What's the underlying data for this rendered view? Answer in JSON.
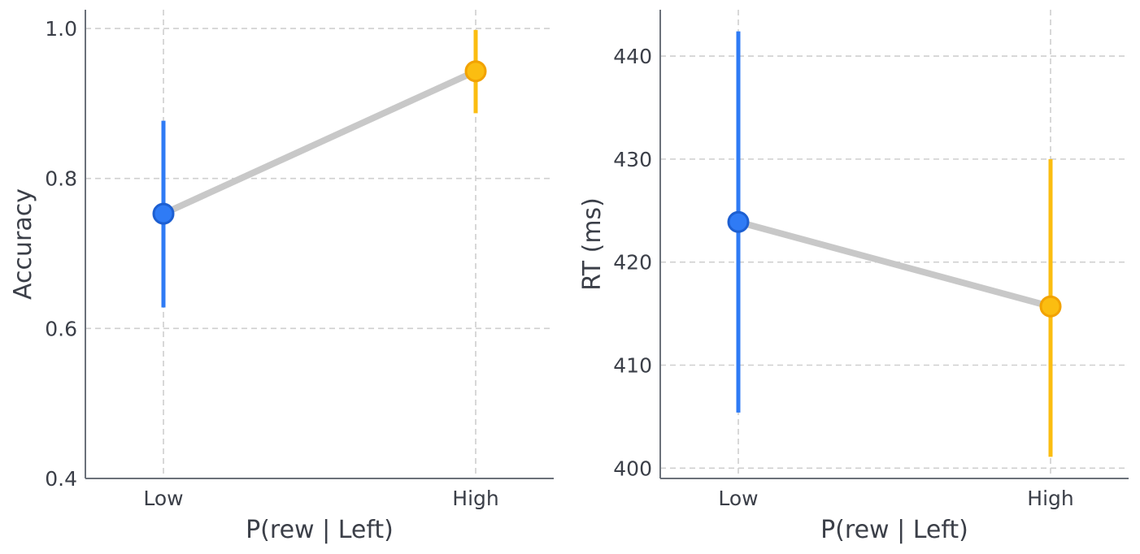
{
  "chart_data": [
    {
      "type": "line",
      "xlabel": "P(rew | Left)",
      "ylabel": "Accuracy",
      "categories": [
        "Low",
        "High"
      ],
      "ylim": [
        0.4,
        1.025
      ],
      "yticks": [
        0.4,
        0.6,
        0.8,
        1.0
      ],
      "ytick_labels": [
        "0.4",
        "0.6",
        "0.8",
        "1.0"
      ],
      "grid": true,
      "connector_color": "#c8c8c8",
      "points": [
        {
          "category": "Low",
          "value": 0.753,
          "ci_low": 0.628,
          "ci_high": 0.877,
          "color": "#2f7bf5",
          "edge_color": "#1d5fd1"
        },
        {
          "category": "High",
          "value": 0.943,
          "ci_low": 0.887,
          "ci_high": 0.998,
          "color": "#fbbd11",
          "edge_color": "#f2a201"
        }
      ]
    },
    {
      "type": "line",
      "xlabel": "P(rew | Left)",
      "ylabel": "RT (ms)",
      "categories": [
        "Low",
        "High"
      ],
      "ylim": [
        399,
        444.5
      ],
      "yticks": [
        400,
        410,
        420,
        430,
        440
      ],
      "ytick_labels": [
        "400",
        "410",
        "420",
        "430",
        "440"
      ],
      "grid": true,
      "connector_color": "#c8c8c8",
      "points": [
        {
          "category": "Low",
          "value": 423.9,
          "ci_low": 405.4,
          "ci_high": 442.4,
          "color": "#2f7bf5",
          "edge_color": "#1d5fd1"
        },
        {
          "category": "High",
          "value": 415.7,
          "ci_low": 401.1,
          "ci_high": 430.0,
          "color": "#fbbd11",
          "edge_color": "#f2a201"
        }
      ]
    }
  ]
}
